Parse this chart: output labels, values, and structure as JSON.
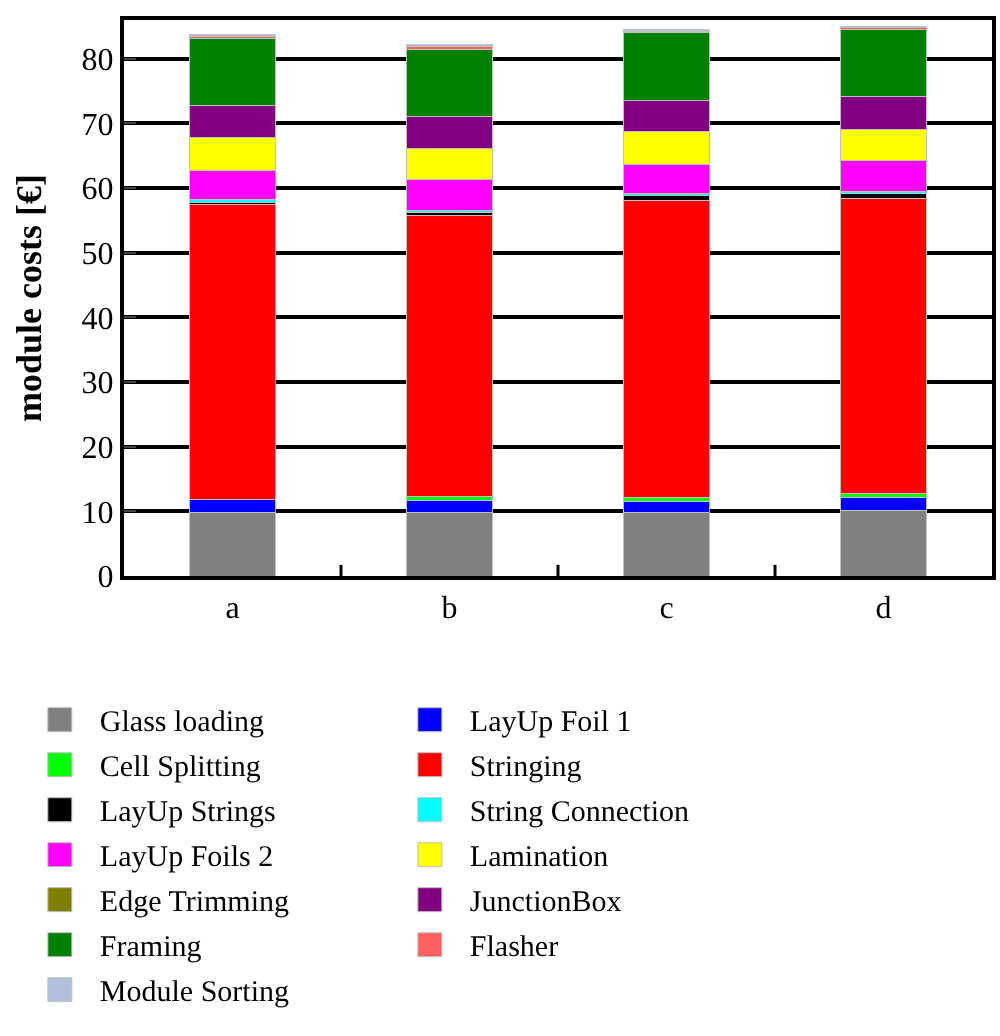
{
  "chart_data": {
    "type": "bar",
    "stacked": true,
    "ylabel": "module costs [€]",
    "categories": [
      "a",
      "b",
      "c",
      "d"
    ],
    "ylim": [
      0,
      86
    ],
    "yticks": [
      0,
      10,
      20,
      30,
      40,
      50,
      60,
      70,
      80
    ],
    "grid": "y",
    "legend": "bottom",
    "series": [
      {
        "name": "Glass loading",
        "color": "#808080",
        "values": [
          9.9,
          9.9,
          9.9,
          10.1
        ]
      },
      {
        "name": "LayUp Foil 1",
        "color": "#0000ff",
        "values": [
          1.9,
          1.8,
          1.7,
          2.0
        ]
      },
      {
        "name": "Cell Splitting",
        "color": "#00ff00",
        "values": [
          0,
          0.6,
          0.5,
          0.7
        ]
      },
      {
        "name": "Stringing",
        "color": "#ff0000",
        "values": [
          45.7,
          43.5,
          46.0,
          45.6
        ]
      },
      {
        "name": "LayUp Strings",
        "color": "#000000",
        "values": [
          0.3,
          0.5,
          0.8,
          0.7
        ]
      },
      {
        "name": "String Connection",
        "color": "#00ffff",
        "values": [
          0.4,
          0.3,
          0.3,
          0.3
        ]
      },
      {
        "name": "LayUp Foils 2",
        "color": "#ff00ff",
        "values": [
          4.6,
          4.7,
          4.5,
          4.9
        ]
      },
      {
        "name": "Lamination",
        "color": "#ffff00",
        "values": [
          5.1,
          4.9,
          5.0,
          4.8
        ]
      },
      {
        "name": "Edge Trimming",
        "color": "#808000",
        "values": [
          0,
          0,
          0,
          0
        ]
      },
      {
        "name": "JunctionBox",
        "color": "#800080",
        "values": [
          4.9,
          4.9,
          4.9,
          5.1
        ]
      },
      {
        "name": "Framing",
        "color": "#008000",
        "values": [
          10.4,
          10.4,
          10.4,
          10.3
        ]
      },
      {
        "name": "Flasher",
        "color": "#ff6060",
        "values": [
          0.3,
          0.4,
          0.3,
          0.3
        ]
      },
      {
        "name": "Module Sorting",
        "color": "#b0c0dc",
        "values": [
          0.2,
          0.3,
          0.2,
          0.2
        ]
      }
    ]
  }
}
